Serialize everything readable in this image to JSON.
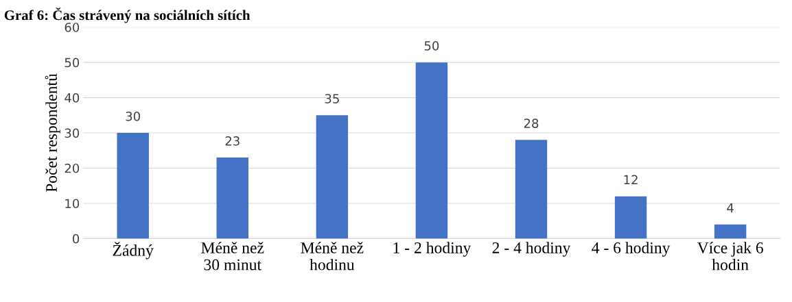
{
  "chart_data": {
    "type": "bar",
    "title": "Graf 6: Čas strávený na sociálních sítích",
    "ylabel": "Počet respondentů",
    "categories": [
      "Žádný",
      "Méně než\n30 minut",
      "Méně než\nhodinu",
      "1 - 2 hodiny",
      "2 - 4 hodiny",
      "4 - 6 hodiny",
      "Více jak 6\nhodin"
    ],
    "values": [
      30,
      23,
      35,
      50,
      28,
      12,
      4
    ],
    "color": "#4472c4",
    "ylim": [
      0,
      60
    ],
    "yticks": [
      0,
      10,
      20,
      30,
      40,
      50,
      60
    ],
    "grid": "y",
    "data_labels": true
  }
}
